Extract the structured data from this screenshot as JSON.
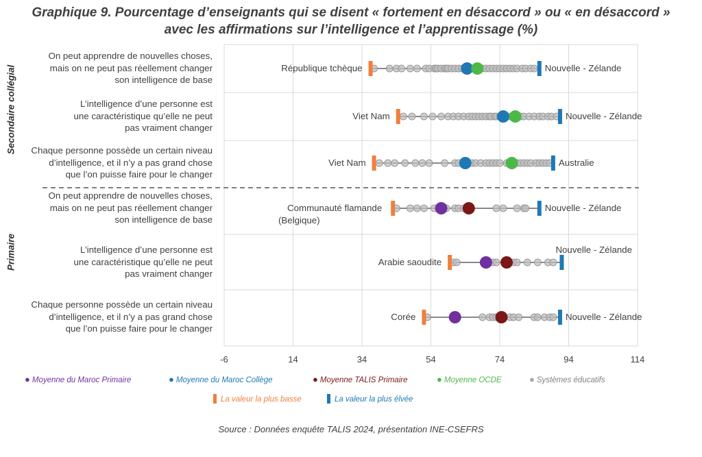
{
  "title_line1": "Graphique 9. Pourcentage d’enseignants qui se disent « fortement en désaccord » ou « en désaccord »",
  "title_line2": "avec les affirmations sur l’intelligence et l’apprentissage (%)",
  "source": "Source : Données enquête TALIS 2024, présentation INE-CSEFRS",
  "colors": {
    "maroc_primaire": "#7030A0",
    "maroc_college": "#1F78B4",
    "talis_primaire": "#7B1717",
    "ocde": "#4CB848",
    "systemes": "#BFBFBF",
    "min": "#F07F3C",
    "max": "#1F78B4"
  },
  "legend": [
    {
      "key": "maroc_primaire",
      "label": "Moyenne du Maroc Primaire",
      "marker": "dot"
    },
    {
      "key": "maroc_college",
      "label": "Moyenne du Maroc Collège",
      "marker": "dot"
    },
    {
      "key": "talis_primaire",
      "label": "Moyenne TALIS Primaire",
      "marker": "dot"
    },
    {
      "key": "ocde",
      "label": "Moyenne OCDE",
      "marker": "dot"
    },
    {
      "key": "systemes",
      "label": "Systèmes éducatifs",
      "marker": "dot"
    },
    {
      "key": "min",
      "label": "La valeur la plus basse",
      "marker": "bar"
    },
    {
      "key": "max",
      "label": "La valeur la plus élvée",
      "marker": "bar"
    }
  ],
  "chart_data": {
    "type": "scatter",
    "xlim": [
      -6,
      114
    ],
    "xticks": [
      -6,
      14,
      34,
      54,
      74,
      94,
      114
    ],
    "grid": true,
    "groups": [
      {
        "name": "Secondaire collégial",
        "rows": [
          0,
          1,
          2
        ]
      },
      {
        "name": "Primaire",
        "rows": [
          3,
          4,
          5
        ]
      }
    ],
    "rows": [
      {
        "category": [
          "On peut apprendre de nouvelles choses,",
          "mais on ne peut pas réellement changer",
          "son intelligence de base"
        ],
        "min": {
          "value": 36.5,
          "label": "République tchèque"
        },
        "max": {
          "value": 85.5,
          "label": "Nouvelle - Zélande"
        },
        "means": [
          {
            "key": "maroc_college",
            "value": 64.5
          },
          {
            "key": "ocde",
            "value": 67.5
          }
        ],
        "systems": [
          37.5,
          42,
          44,
          45.5,
          48,
          50,
          52.5,
          53.5,
          55,
          55.5,
          56,
          57,
          58,
          58.5,
          59,
          60,
          61,
          62,
          63,
          64,
          66,
          67,
          68,
          69,
          70,
          71,
          72,
          73,
          74,
          75,
          76,
          77,
          78,
          79,
          80.5,
          81.5,
          83,
          84
        ]
      },
      {
        "category": [
          "L’intelligence d’une personne est",
          "une caractéristique qu’elle ne peut",
          "pas vraiment changer"
        ],
        "min": {
          "value": 44.5,
          "label": "Viet Nam"
        },
        "max": {
          "value": 91.5,
          "label": "Nouvelle - Zélande"
        },
        "means": [
          {
            "key": "maroc_college",
            "value": 75
          },
          {
            "key": "ocde",
            "value": 78.5
          }
        ],
        "systems": [
          46,
          48.5,
          52,
          54.5,
          57,
          59,
          60.5,
          62,
          63.5,
          65,
          66,
          67,
          68,
          69,
          70,
          71,
          71.5,
          72.5,
          73,
          74,
          76,
          77,
          80,
          81,
          82.5,
          84,
          85.5,
          86.5,
          88,
          89,
          90.5
        ]
      },
      {
        "category": [
          "Chaque personne possède un certain niveau",
          "d’intelligence, et il n’y a pas grand chose",
          "que l’on puisse faire pour le changer"
        ],
        "min": {
          "value": 37.5,
          "label": "Viet Nam"
        },
        "max": {
          "value": 89.5,
          "label": "Australie"
        },
        "means": [
          {
            "key": "maroc_college",
            "value": 64
          },
          {
            "key": "ocde",
            "value": 77.5
          }
        ],
        "systems": [
          39,
          41.5,
          43.5,
          46.5,
          49.5,
          51.5,
          53.5,
          58,
          61,
          62,
          66,
          67,
          68.5,
          70,
          71,
          72,
          73,
          74,
          76,
          79,
          80,
          81,
          82,
          83,
          84.5,
          85.5,
          86.5,
          87.5,
          88.5
        ]
      },
      {
        "category": [
          "On peut apprendre de nouvelles choses,",
          "mais on ne peut pas réellement changer",
          "son intelligence de base"
        ],
        "min": {
          "value": 43,
          "label": "Communauté flamande (Belgique)"
        },
        "max": {
          "value": 85.5,
          "label": "Nouvelle - Zélande"
        },
        "means": [
          {
            "key": "maroc_primaire",
            "value": 57
          },
          {
            "key": "talis_primaire",
            "value": 65
          }
        ],
        "systems": [
          44,
          48,
          50,
          52,
          55,
          56.5,
          58.5,
          61,
          62,
          63.5,
          73,
          75,
          79,
          81,
          81.5
        ]
      },
      {
        "category": [
          "L’intelligence d’une personne est",
          "une caractéristique qu’elle ne peut",
          "pas vraiment changer"
        ],
        "min": {
          "value": 59.5,
          "label": "Arabie saoudite"
        },
        "max": {
          "value": 92,
          "label": "Nouvelle - Zélande"
        },
        "means": [
          {
            "key": "maroc_primaire",
            "value": 70
          },
          {
            "key": "talis_primaire",
            "value": 76
          }
        ],
        "systems": [
          60.5,
          61.5,
          72,
          73,
          78,
          79,
          82,
          85,
          88,
          89.5
        ]
      },
      {
        "category": [
          "Chaque personne possède un certain niveau",
          "d’intelligence, et il n’y a pas grand chose",
          "que l’on puisse faire pour le changer"
        ],
        "min": {
          "value": 52,
          "label": "Corée"
        },
        "max": {
          "value": 91.5,
          "label": "Nouvelle - Zélande"
        },
        "means": [
          {
            "key": "maroc_primaire",
            "value": 61
          },
          {
            "key": "talis_primaire",
            "value": 74.5
          }
        ],
        "systems": [
          53,
          69,
          71,
          72,
          73,
          77,
          78,
          79.5,
          84,
          85,
          87,
          88.5,
          89.5
        ]
      }
    ]
  }
}
